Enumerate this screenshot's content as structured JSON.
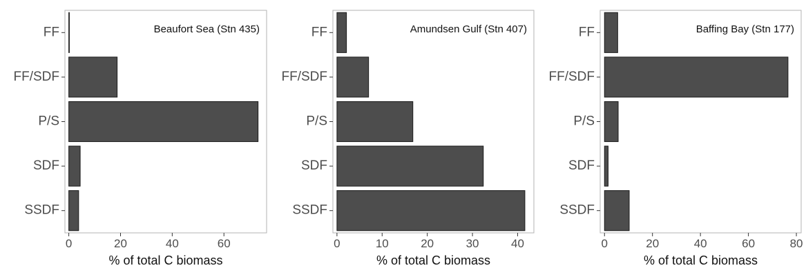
{
  "chart_data": [
    {
      "type": "bar",
      "orientation": "horizontal",
      "title": "Beaufort Sea (Stn 435)",
      "categories": [
        "FF",
        "FF/SDF",
        "P/S",
        "SDF",
        "SSDF"
      ],
      "values": [
        0.2,
        18.7,
        73.2,
        4.4,
        3.8
      ],
      "xlabel": "% of total C biomass",
      "xlim": [
        -1.5,
        76.5
      ],
      "xticks": [
        0,
        20,
        40,
        60
      ],
      "xtick_labels": [
        "0",
        "20",
        "40",
        "60"
      ],
      "grid": false,
      "bar_color": "#4d4d4d"
    },
    {
      "type": "bar",
      "orientation": "horizontal",
      "title": "Amundsen Gulf (Stn 407)",
      "categories": [
        "FF",
        "FF/SDF",
        "P/S",
        "SDF",
        "SSDF"
      ],
      "values": [
        2.1,
        7.0,
        16.8,
        32.4,
        41.6
      ],
      "xlabel": "% of total C biomass",
      "xlim": [
        -0.9,
        43.6
      ],
      "xticks": [
        0,
        10,
        20,
        30,
        40
      ],
      "xtick_labels": [
        "0",
        "10",
        "20",
        "30",
        "40"
      ],
      "grid": false,
      "bar_color": "#4d4d4d"
    },
    {
      "type": "bar",
      "orientation": "horizontal",
      "title": "Baffing Bay (Stn 177)",
      "categories": [
        "FF",
        "FF/SDF",
        "P/S",
        "SDF",
        "SSDF"
      ],
      "values": [
        5.5,
        76.5,
        5.7,
        1.5,
        10.3
      ],
      "xlabel": "% of total C biomass",
      "xlim": [
        -1.8,
        82.0
      ],
      "xticks": [
        0,
        20,
        40,
        60,
        80
      ],
      "xtick_labels": [
        "0",
        "20",
        "40",
        "60",
        "80"
      ],
      "grid": false,
      "bar_color": "#4d4d4d"
    }
  ]
}
